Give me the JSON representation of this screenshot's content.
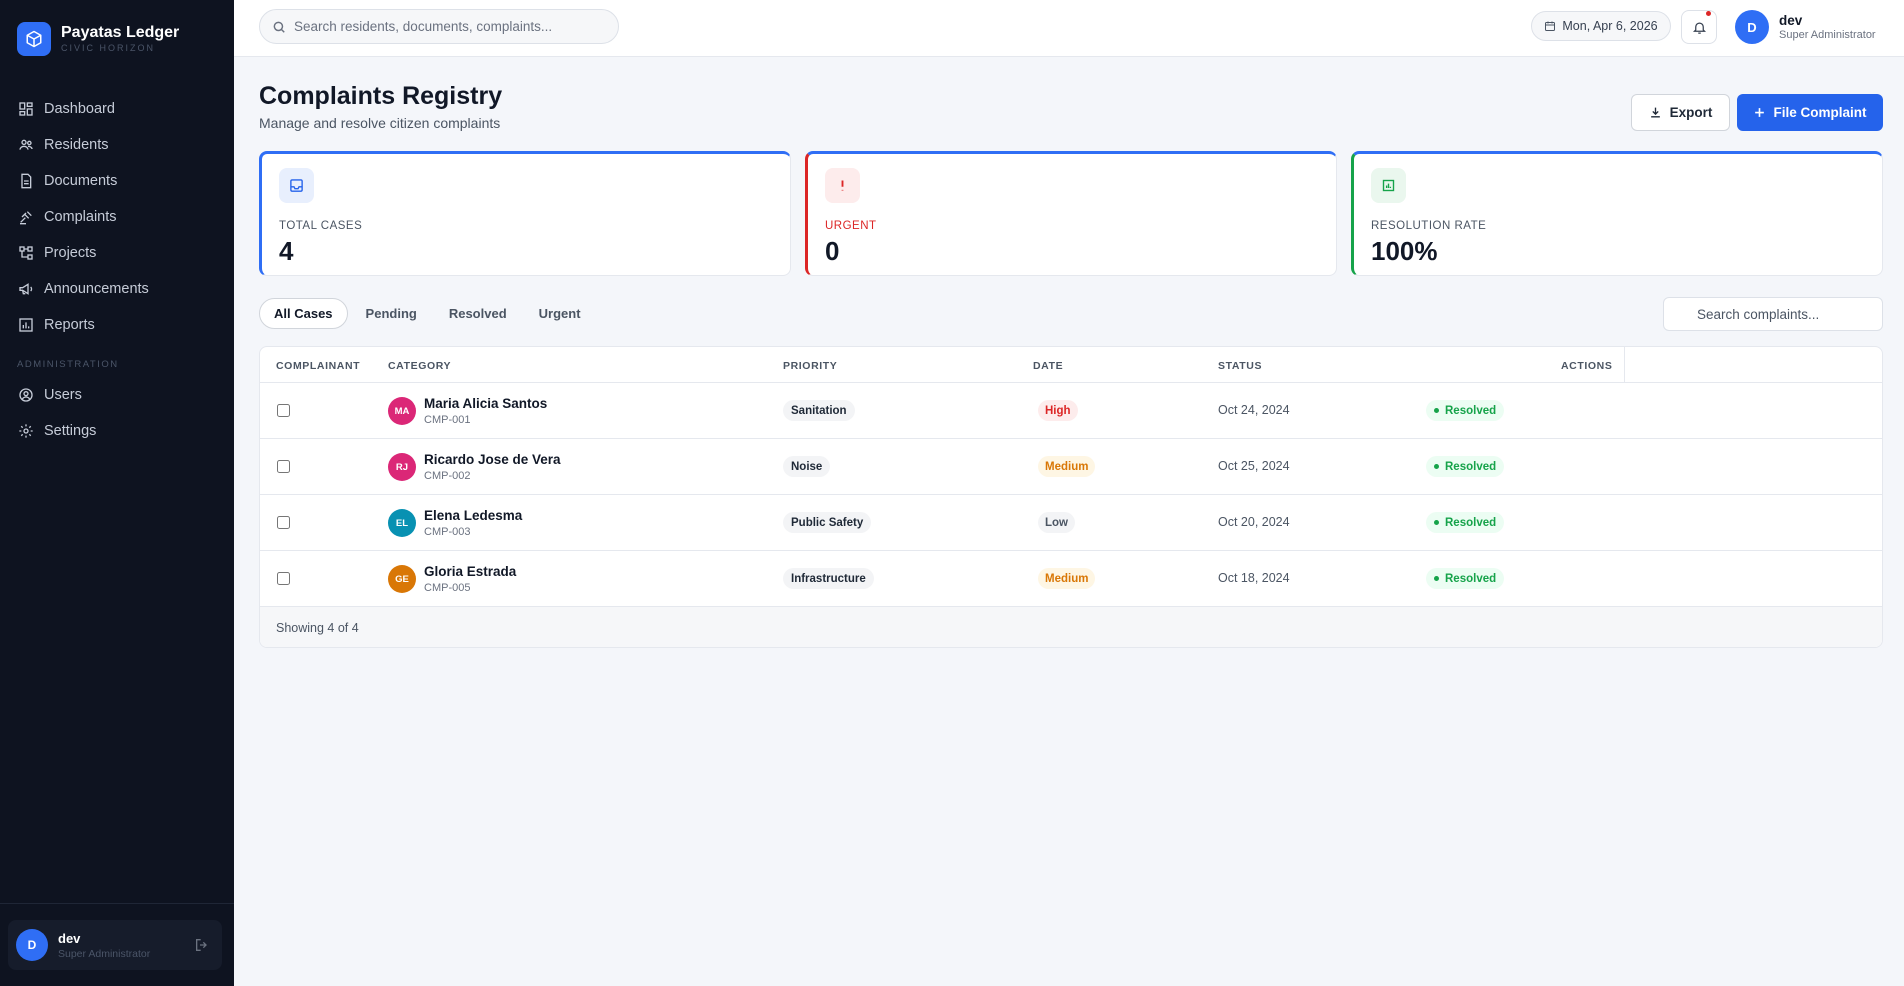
{
  "brand": {
    "name": "Payatas Ledger",
    "subtitle": "CIVIC HORIZON"
  },
  "sidebar": {
    "items": [
      {
        "label": "Dashboard",
        "icon": "dashboard-icon"
      },
      {
        "label": "Residents",
        "icon": "users-icon"
      },
      {
        "label": "Documents",
        "icon": "document-icon"
      },
      {
        "label": "Complaints",
        "icon": "gavel-icon"
      },
      {
        "label": "Projects",
        "icon": "projects-icon"
      },
      {
        "label": "Announcements",
        "icon": "megaphone-icon"
      },
      {
        "label": "Reports",
        "icon": "chart-icon"
      }
    ],
    "section_label": "ADMINISTRATION",
    "admin_items": [
      {
        "label": "Users",
        "icon": "users-circle-icon"
      },
      {
        "label": "Settings",
        "icon": "gear-icon"
      }
    ],
    "user": {
      "initial": "D",
      "name": "dev",
      "role": "Super Administrator"
    }
  },
  "topbar": {
    "search_placeholder": "Search residents, documents, complaints...",
    "date": "Mon, Apr 6, 2026",
    "user": {
      "initial": "D",
      "name": "dev",
      "role": "Super Administrator"
    }
  },
  "page": {
    "title": "Complaints Registry",
    "subtitle": "Manage and resolve citizen complaints",
    "export_label": "Export",
    "file_label": "File Complaint"
  },
  "stats": {
    "total": {
      "label": "TOTAL CASES",
      "value": "4"
    },
    "urgent": {
      "label": "URGENT",
      "value": "0"
    },
    "rate": {
      "label": "RESOLUTION RATE",
      "value": "100%"
    }
  },
  "tabs": [
    "All Cases",
    "Pending",
    "Resolved",
    "Urgent"
  ],
  "active_tab": "All Cases",
  "complaint_search_placeholder": "Search complaints...",
  "table": {
    "headers": [
      "COMPLAINANT",
      "CATEGORY",
      "PRIORITY",
      "DATE",
      "STATUS",
      "ACTIONS"
    ],
    "rows": [
      {
        "initials": "MA",
        "avatar_color": "#db2777",
        "name": "Maria Alicia Santos",
        "id": "CMP-001",
        "category": "Sanitation",
        "priority": "High",
        "date": "Oct 24, 2024",
        "status": "Resolved"
      },
      {
        "initials": "RJ",
        "avatar_color": "#db2777",
        "name": "Ricardo Jose de Vera",
        "id": "CMP-002",
        "category": "Noise",
        "priority": "Medium",
        "date": "Oct 25, 2024",
        "status": "Resolved"
      },
      {
        "initials": "EL",
        "avatar_color": "#0891b2",
        "name": "Elena Ledesma",
        "id": "CMP-003",
        "category": "Public Safety",
        "priority": "Low",
        "date": "Oct 20, 2024",
        "status": "Resolved"
      },
      {
        "initials": "GE",
        "avatar_color": "#d97706",
        "name": "Gloria Estrada",
        "id": "CMP-005",
        "category": "Infrastructure",
        "priority": "Medium",
        "date": "Oct 18, 2024",
        "status": "Resolved"
      }
    ],
    "footer": "Showing 4 of 4"
  },
  "colors": {
    "accent": "#2563eb",
    "priority_high": "#dc2626",
    "priority_medium": "#d97706",
    "priority_low": "#4b5563",
    "resolved": "#16a34a"
  }
}
